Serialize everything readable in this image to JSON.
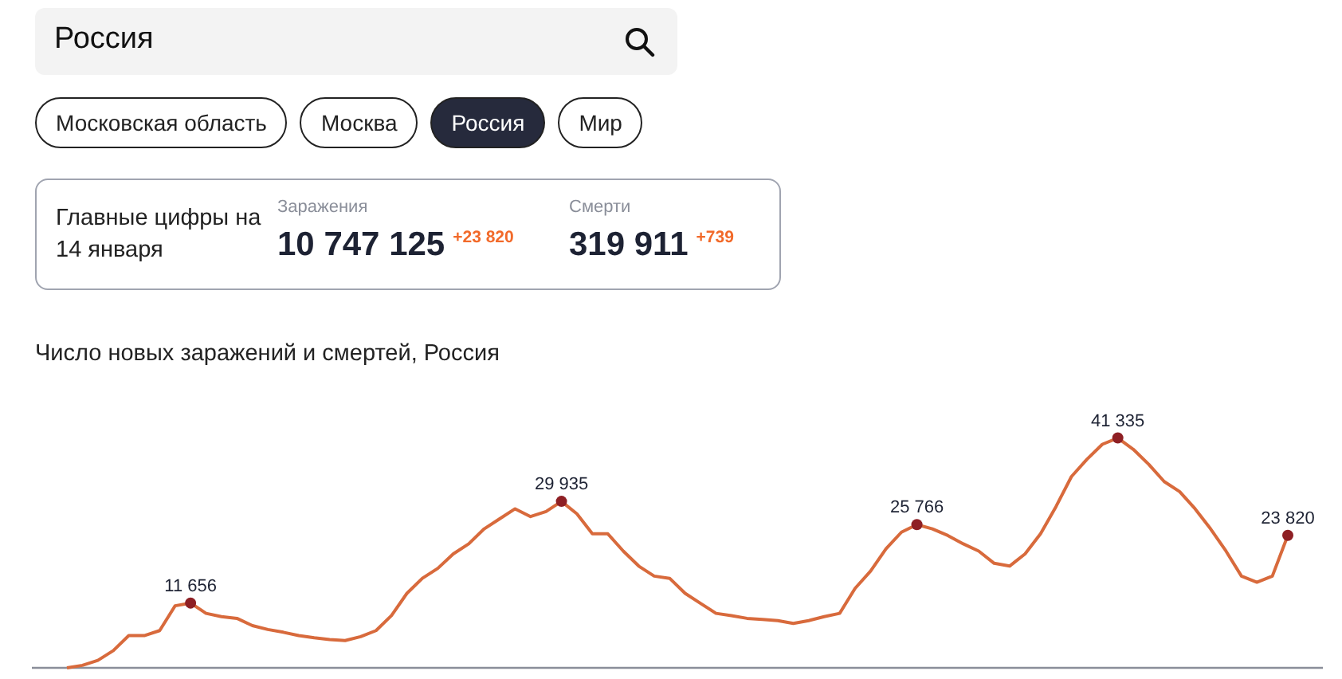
{
  "chart_data": [
    {
      "type": "other",
      "annotations": [
        "Россия",
        "Московская область",
        "Москва",
        "Россия",
        "Мир",
        "Главные цифры на 14 января",
        "Заражения",
        "10 747 125",
        "+23 820",
        "Смерти",
        "319 911",
        "+739"
      ]
    },
    {
      "type": "line",
      "title": "Число новых заражений и смертей, Россия",
      "categories": [
        null,
        null,
        null,
        null,
        null,
        null,
        null,
        null,
        null,
        null,
        null,
        null,
        null,
        null,
        null,
        null,
        null,
        null,
        null,
        null,
        null,
        null,
        null,
        null,
        null,
        null,
        null,
        null,
        null,
        null,
        null,
        null,
        null,
        null,
        null,
        null,
        null,
        null,
        null,
        null,
        null,
        null,
        null,
        null,
        null,
        null,
        null,
        null,
        null,
        null,
        null,
        null,
        null,
        null,
        null,
        null,
        null,
        null,
        null,
        null,
        null,
        null,
        null,
        null,
        null,
        null,
        null,
        null,
        null,
        null,
        null,
        null,
        null,
        null,
        null,
        null,
        null,
        null,
        null,
        null
      ],
      "series": [
        {
          "color": "#d86a3c",
          "values": [
            0,
            450,
            1340,
            3100,
            5800,
            5800,
            6700,
            11160,
            11656,
            9800,
            9200,
            8900,
            7600,
            6900,
            6400,
            5800,
            5400,
            5100,
            4900,
            5600,
            6700,
            9400,
            13400,
            16100,
            17900,
            20500,
            22300,
            25000,
            26800,
            28600,
            27200,
            28100,
            29935,
            27700,
            24100,
            24100,
            21000,
            18300,
            16500,
            16100,
            13400,
            11600,
            9800,
            9400,
            8900,
            8700,
            8500,
            8000,
            8500,
            9200,
            9800,
            14300,
            17400,
            21400,
            24400,
            25766,
            25000,
            23800,
            22300,
            21000,
            18800,
            18300,
            20500,
            24100,
            29000,
            34400,
            37500,
            40200,
            41335,
            39300,
            36600,
            33500,
            31700,
            28600,
            25000,
            21000,
            16500,
            15400,
            16500,
            23820
          ],
          "value_labels": [
            null,
            null,
            null,
            null,
            null,
            null,
            null,
            null,
            "11 656",
            null,
            null,
            null,
            null,
            null,
            null,
            null,
            null,
            null,
            null,
            null,
            null,
            null,
            null,
            null,
            null,
            null,
            null,
            null,
            null,
            null,
            null,
            null,
            "29 935",
            null,
            null,
            null,
            null,
            null,
            null,
            null,
            null,
            null,
            null,
            null,
            null,
            null,
            null,
            null,
            null,
            null,
            null,
            null,
            null,
            null,
            null,
            "25 766",
            null,
            null,
            null,
            null,
            null,
            null,
            null,
            null,
            null,
            null,
            null,
            null,
            "41 335",
            null,
            null,
            null,
            null,
            null,
            null,
            null,
            null,
            null,
            null,
            "23 820"
          ]
        }
      ],
      "tick_labels": false,
      "legend": false,
      "marker": "none",
      "line_style": "solid"
    }
  ]
}
